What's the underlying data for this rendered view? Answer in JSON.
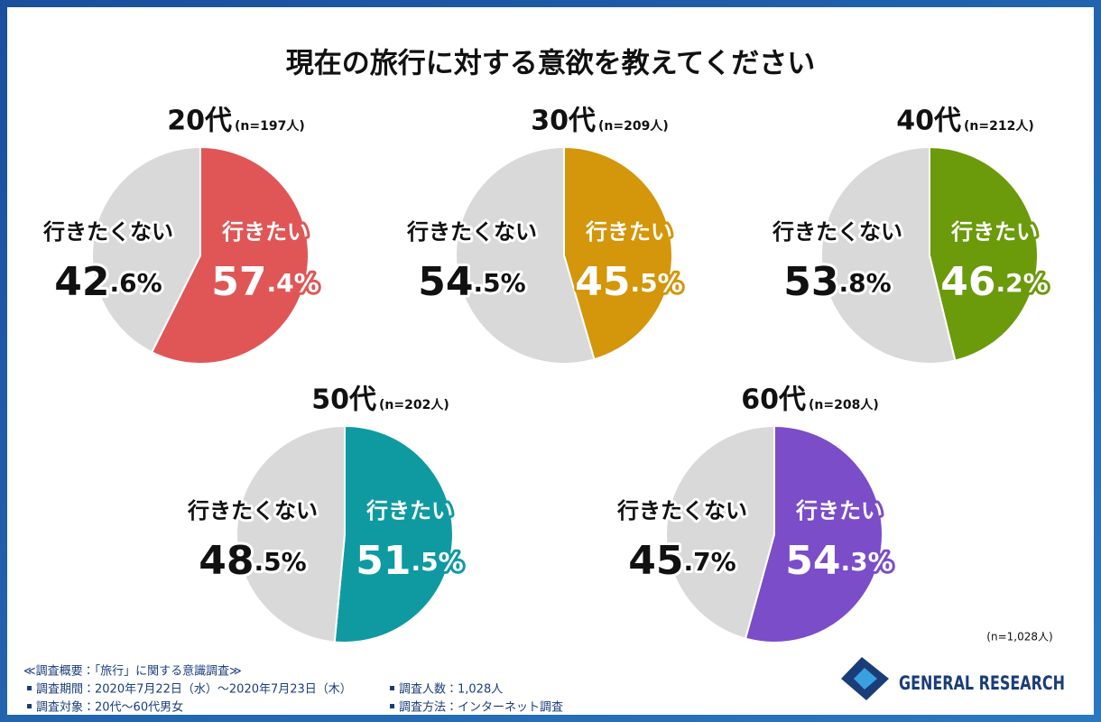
{
  "title": "現在の旅行に対する意欲を教えてください",
  "chart_data": [
    {
      "type": "pie",
      "title": "20代",
      "subtitle": "(n=197人)",
      "categories": [
        "行きたい",
        "行きたくない"
      ],
      "values": [
        57.4,
        42.6
      ],
      "value_labels": [
        "57.4%",
        "42.6%"
      ],
      "colors": [
        "#e05656",
        "#d9d9d9"
      ]
    },
    {
      "type": "pie",
      "title": "30代",
      "subtitle": "(n=209人)",
      "categories": [
        "行きたい",
        "行きたくない"
      ],
      "values": [
        45.5,
        54.5
      ],
      "value_labels": [
        "45.5%",
        "54.5%"
      ],
      "colors": [
        "#d4960a",
        "#d9d9d9"
      ]
    },
    {
      "type": "pie",
      "title": "40代",
      "subtitle": "(n=212人)",
      "categories": [
        "行きたい",
        "行きたくない"
      ],
      "values": [
        46.2,
        53.8
      ],
      "value_labels": [
        "46.2%",
        "53.8%"
      ],
      "colors": [
        "#6b9a0b",
        "#d9d9d9"
      ]
    },
    {
      "type": "pie",
      "title": "50代",
      "subtitle": "(n=202人)",
      "categories": [
        "行きたい",
        "行きたくない"
      ],
      "values": [
        51.5,
        48.5
      ],
      "value_labels": [
        "51.5%",
        "48.5%"
      ],
      "colors": [
        "#0f9aa2",
        "#d9d9d9"
      ]
    },
    {
      "type": "pie",
      "title": "60代",
      "subtitle": "(n=208人)",
      "categories": [
        "行きたい",
        "行きたくない"
      ],
      "values": [
        54.3,
        45.7
      ],
      "value_labels": [
        "54.3%",
        "45.7%"
      ],
      "colors": [
        "#7b4dc9",
        "#d9d9d9"
      ]
    }
  ],
  "total_note": "(n=1,028人)",
  "footer": {
    "heading": "≪調査概要：「旅行」に関する意識調査≫",
    "items": [
      "調査期間：2020年7月22日（水）～2020年7月23日（木）",
      "調査対象：20代～60代男女",
      "調査人数：1,028人",
      "調査方法：インターネット調査"
    ]
  },
  "logo": "GENERAL RESEARCH"
}
